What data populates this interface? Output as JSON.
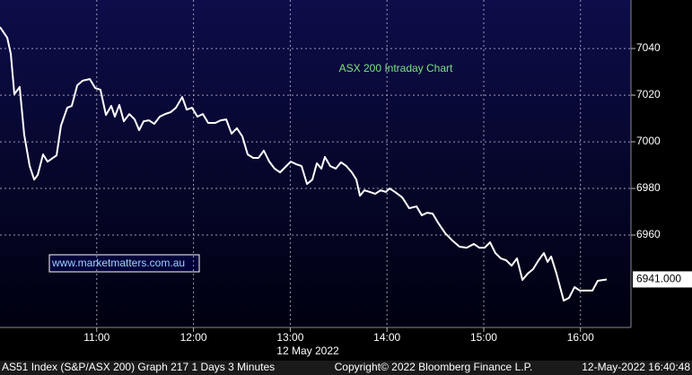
{
  "chart_data": {
    "type": "line",
    "annotation": "ASX 200 Intraday Chart",
    "watermark": "www.marketmatters.com.au",
    "xlabel": "12 May 2022",
    "footer": [
      "AS51 Index (S&P/ASX 200) Graph 217 1 Days 3 Minutes",
      "Copyright© 2022 Bloomberg Finance L.P.",
      "12-May-2022 16:40:48"
    ],
    "last_price_label": "6941.000",
    "color": "#ffffff",
    "grid": true,
    "xlim": [
      0,
      391.3
    ],
    "ylim": [
      6920.4,
      7060.8
    ],
    "xticks": [
      {
        "value": 60,
        "label": "11:00"
      },
      {
        "value": 120,
        "label": "12:00"
      },
      {
        "value": 180,
        "label": "13:00"
      },
      {
        "value": 240,
        "label": "14:00"
      },
      {
        "value": 300,
        "label": "15:00"
      },
      {
        "value": 360,
        "label": "16:00"
      }
    ],
    "yticks": [
      6960,
      6980,
      7000,
      7020,
      7040
    ],
    "x": [
      0,
      4.5,
      6.7,
      8.9,
      12.2,
      15.0,
      18.4,
      21.2,
      23.4,
      26.7,
      29.5,
      35.1,
      37.8,
      41.7,
      44.5,
      47.9,
      51.2,
      55.7,
      59.0,
      62.3,
      65.7,
      69.0,
      71.2,
      74.0,
      76.8,
      80.2,
      83.5,
      86.3,
      89.1,
      92.4,
      95.7,
      99.1,
      102.4,
      105.8,
      109.1,
      113.0,
      115.8,
      119.1,
      122.4,
      125.8,
      129.1,
      133.6,
      136.9,
      140.3,
      143.6,
      146.9,
      150.3,
      153.6,
      157.0,
      160.3,
      163.6,
      167.0,
      170.3,
      173.7,
      177.0,
      180.3,
      183.7,
      187.0,
      190.4,
      193.7,
      196.5,
      199.3,
      201.5,
      204.8,
      208.2,
      211.5,
      214.8,
      218.2,
      221.0,
      223.2,
      226.0,
      229.3,
      232.7,
      236.0,
      239.3,
      241.6,
      244.9,
      249.4,
      253.8,
      258.3,
      261.6,
      264.9,
      268.3,
      271.6,
      276.1,
      280.5,
      285.0,
      289.4,
      293.9,
      297.2,
      300.6,
      303.9,
      307.2,
      310.6,
      313.9,
      317.3,
      320.6,
      324.0,
      327.3,
      330.6,
      334.0,
      337.3,
      339.6,
      341.8,
      345.1,
      349.6,
      352.9,
      356.3,
      359.6,
      367.4,
      370.7,
      376.3
    ],
    "values": [
      7049.2,
      7044.6,
      7037.7,
      7020.4,
      7023.5,
      7003.1,
      6989.6,
      6983.8,
      6985.8,
      6994.6,
      6991.5,
      6994.2,
      7006.9,
      7014.6,
      7015.4,
      7024.2,
      7026.2,
      7026.9,
      7023.1,
      7022.3,
      7011.5,
      7015.4,
      7010.8,
      7015.8,
      7008.8,
      7011.9,
      7009.6,
      7005.0,
      7008.8,
      7009.2,
      7007.7,
      7010.8,
      7011.9,
      7012.7,
      7014.6,
      7019.2,
      7013.8,
      7014.6,
      7010.8,
      7011.9,
      7008.1,
      7008.1,
      7009.2,
      7009.6,
      7003.5,
      7005.8,
      7002.3,
      6994.6,
      6993.1,
      6993.1,
      6996.2,
      6991.5,
      6988.5,
      6986.9,
      6989.2,
      6991.5,
      6990.4,
      6989.6,
      6981.9,
      6983.8,
      6990.8,
      6988.5,
      6993.5,
      6989.6,
      6988.5,
      6991.2,
      6989.6,
      6986.9,
      6983.8,
      6976.9,
      6979.2,
      6978.5,
      6977.7,
      6979.2,
      6978.5,
      6980.0,
      6978.5,
      6976.2,
      6971.5,
      6972.3,
      6968.5,
      6969.6,
      6969.2,
      6965.4,
      6960.8,
      6957.7,
      6955.0,
      6954.6,
      6956.2,
      6954.6,
      6954.6,
      6956.9,
      6952.3,
      6950.0,
      6949.2,
      6946.9,
      6950.0,
      6940.8,
      6943.5,
      6945.4,
      6949.2,
      6952.3,
      6948.5,
      6950.8,
      6943.5,
      6931.9,
      6933.1,
      6937.7,
      6936.2,
      6936.2,
      6940.4,
      6941.0
    ]
  }
}
